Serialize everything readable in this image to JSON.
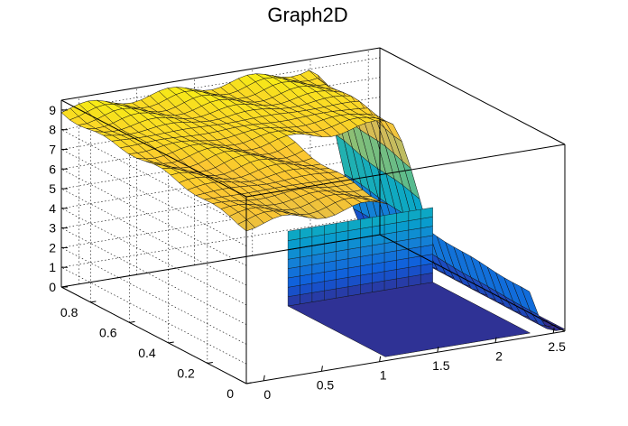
{
  "chart_data": {
    "type": "surface",
    "title": "Graph2D",
    "xlabel": "",
    "ylabel": "",
    "zlabel": "",
    "xlim": [
      -0.15,
      2.6
    ],
    "ylim": [
      0,
      0.95
    ],
    "zlim": [
      0,
      9.5
    ],
    "x_ticks": [
      "0",
      "0.5",
      "1",
      "1.5",
      "2",
      "2.5"
    ],
    "x_tick_values": [
      0,
      0.5,
      1,
      1.5,
      2,
      2.5
    ],
    "y_ticks": [
      "0",
      "0.2",
      "0.4",
      "0.6",
      "0.8"
    ],
    "y_tick_values": [
      0,
      0.2,
      0.4,
      0.6,
      0.8
    ],
    "z_ticks": [
      "0",
      "1",
      "2",
      "3",
      "4",
      "5",
      "6",
      "7",
      "8",
      "9"
    ],
    "z_tick_values": [
      0,
      1,
      2,
      3,
      4,
      5,
      6,
      7,
      8,
      9
    ],
    "grid": true,
    "palette": [
      "#352a87",
      "#0f5cdd",
      "#1481d6",
      "#06a4ca",
      "#2eb7a4",
      "#87bf77",
      "#d1bb59",
      "#fec832",
      "#f9fb0e"
    ],
    "surface_description_values": {
      "plateau_z_at_y0": 8.0,
      "plateau_z_at_y095": 9.0,
      "falloff_start_x": 2.0,
      "falloff_end_x": 2.5,
      "low_level_z": 0.1,
      "step_x_region": [
        1.05,
        2.3
      ],
      "step_y_region": [
        0,
        0.5
      ],
      "step_top_z": 4.0,
      "step_bottom_z": 0.2
    }
  }
}
